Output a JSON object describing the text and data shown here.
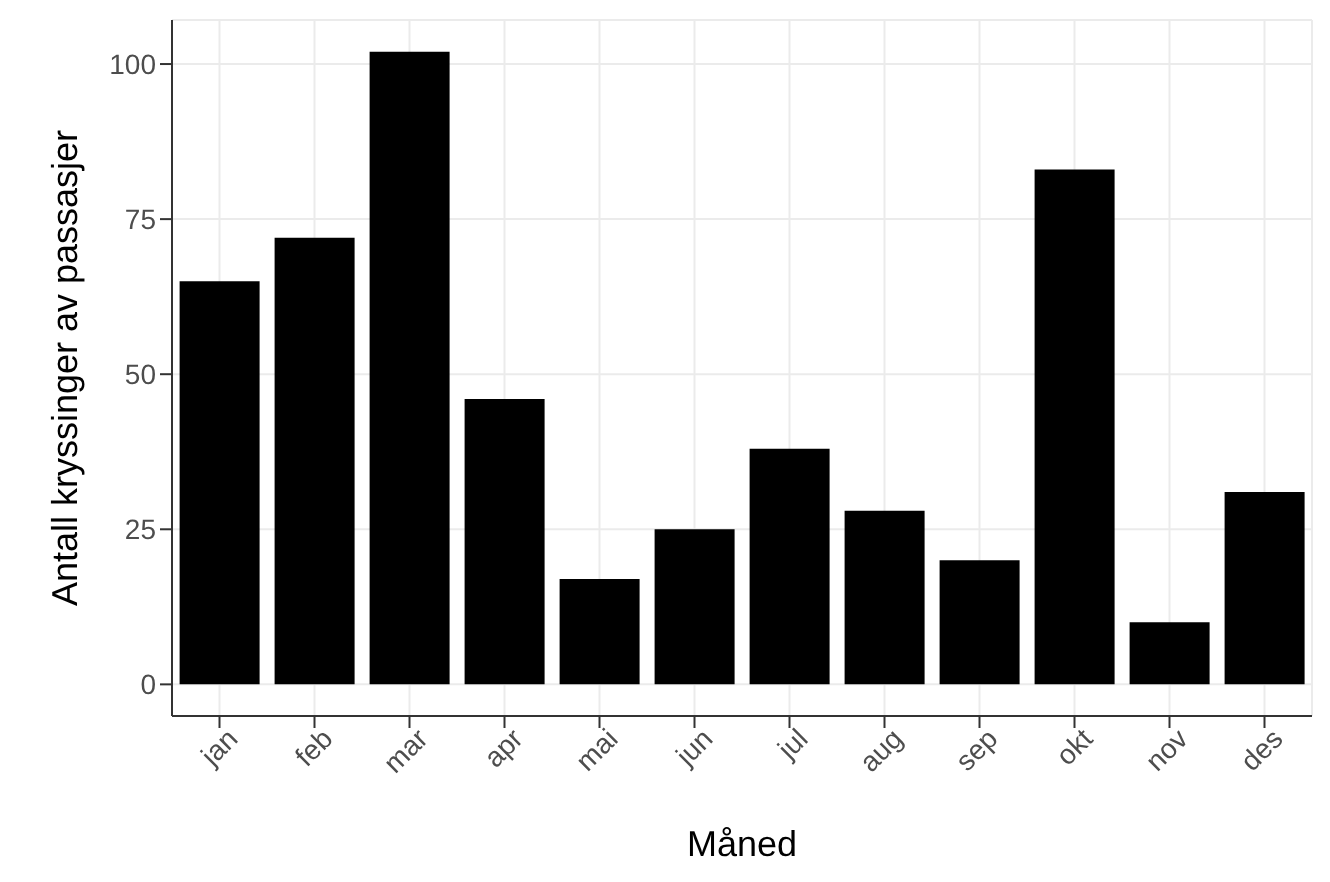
{
  "chart_data": {
    "type": "bar",
    "xlabel": "Måned",
    "ylabel": "Antall kryssinger av passasjer",
    "categories": [
      "jan",
      "feb",
      "mar",
      "apr",
      "mai",
      "jun",
      "jul",
      "aug",
      "sep",
      "okt",
      "nov",
      "des"
    ],
    "values": [
      65,
      72,
      102,
      46,
      17,
      25,
      38,
      28,
      20,
      83,
      10,
      31
    ],
    "color": "#000000",
    "ylim": [
      -5.1,
      107.1
    ],
    "yticks": [
      0,
      25,
      50,
      75,
      100
    ],
    "grid": true
  }
}
